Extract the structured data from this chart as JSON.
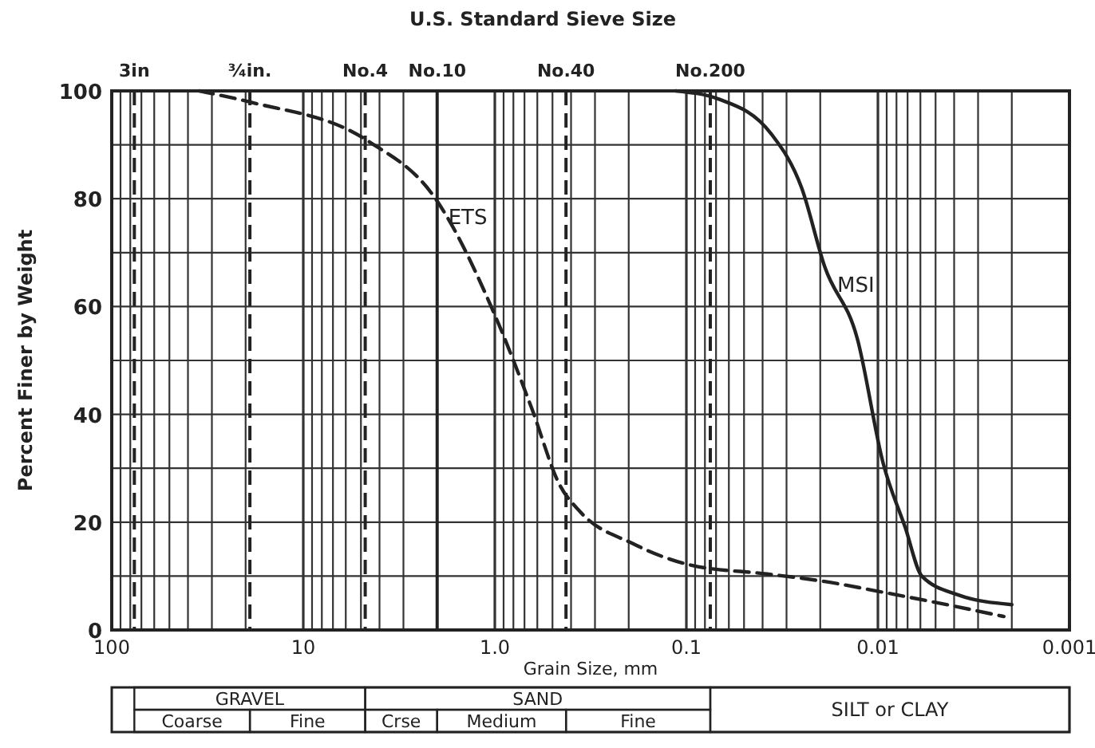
{
  "chart_data": [
    {
      "type": "line",
      "title": "U.S. Standard Sieve Size",
      "xlabel": "Grain Size, mm",
      "ylabel": "Percent Finer by Weight",
      "log": "x",
      "xlim": [
        100,
        0.001
      ],
      "ylim": [
        0,
        100
      ],
      "xticks": [
        {
          "value": 100,
          "label": "100"
        },
        {
          "value": 90,
          "label": null
        },
        {
          "value": 80,
          "label": null
        },
        {
          "value": 70,
          "label": null
        },
        {
          "value": 60,
          "label": null
        },
        {
          "value": 50,
          "label": null
        },
        {
          "value": 40,
          "label": null
        },
        {
          "value": 30,
          "label": null
        },
        {
          "value": 20,
          "label": null
        },
        {
          "value": 10,
          "label": "10"
        },
        {
          "value": 9,
          "label": null
        },
        {
          "value": 8,
          "label": null
        },
        {
          "value": 7,
          "label": null
        },
        {
          "value": 6,
          "label": null
        },
        {
          "value": 5,
          "label": null
        },
        {
          "value": 4,
          "label": null
        },
        {
          "value": 3,
          "label": null
        },
        {
          "value": 2,
          "label": null
        },
        {
          "value": 1,
          "label": "1.0"
        },
        {
          "value": 0.9,
          "label": null
        },
        {
          "value": 0.8,
          "label": null
        },
        {
          "value": 0.7,
          "label": null
        },
        {
          "value": 0.6,
          "label": null
        },
        {
          "value": 0.5,
          "label": null
        },
        {
          "value": 0.4,
          "label": null
        },
        {
          "value": 0.3,
          "label": null
        },
        {
          "value": 0.2,
          "label": null
        },
        {
          "value": 0.1,
          "label": "0.1"
        },
        {
          "value": 0.09,
          "label": null
        },
        {
          "value": 0.08,
          "label": null
        },
        {
          "value": 0.07,
          "label": null
        },
        {
          "value": 0.06,
          "label": null
        },
        {
          "value": 0.05,
          "label": null
        },
        {
          "value": 0.04,
          "label": null
        },
        {
          "value": 0.03,
          "label": null
        },
        {
          "value": 0.02,
          "label": null
        },
        {
          "value": 0.01,
          "label": "0.01"
        },
        {
          "value": 0.009,
          "label": null
        },
        {
          "value": 0.008,
          "label": null
        },
        {
          "value": 0.007,
          "label": null
        },
        {
          "value": 0.006,
          "label": null
        },
        {
          "value": 0.005,
          "label": null
        },
        {
          "value": 0.004,
          "label": null
        },
        {
          "value": 0.003,
          "label": null
        },
        {
          "value": 0.002,
          "label": null
        },
        {
          "value": 0.001,
          "label": "0.001"
        }
      ],
      "yticks": [
        0,
        {
          "value": 10,
          "label": null
        },
        20,
        {
          "value": 30,
          "label": null
        },
        40,
        {
          "value": 50,
          "label": null
        },
        60,
        {
          "value": 70,
          "label": null
        },
        80,
        {
          "value": 90,
          "label": null
        },
        100
      ],
      "grid": true,
      "marker": "none",
      "series": [
        {
          "name": "ETS",
          "color": "#222222",
          "line_style": "dashed",
          "x": [
            35,
            18.8,
            4.64,
            2.04,
            0.98,
            0.64,
            0.46,
            0.36,
            0.19,
            0.094,
            0.038,
            0.019,
            0.0094,
            0.0041,
            0.0022
          ],
          "values": [
            100,
            97.9,
            90.8,
            80,
            57.7,
            41,
            27,
            22,
            16,
            12,
            10.4,
            9,
            7,
            4.5,
            2.5
          ]
        },
        {
          "name": "MSI",
          "color": "#222222",
          "line_style": "solid",
          "x": [
            0.114,
            0.068,
            0.036,
            0.025,
            0.019,
            0.0128,
            0.0094,
            0.0072,
            0.0059,
            0.0038,
            0.002
          ],
          "values": [
            100,
            98.5,
            92,
            82,
            67.5,
            54,
            31,
            19,
            10,
            6.5,
            4.7
          ]
        }
      ],
      "ref_lines": [
        {
          "axis": "x",
          "value": 76.2,
          "label": "3in",
          "line_style": "dashed"
        },
        {
          "axis": "x",
          "value": 19,
          "label": "³⁄₄in.",
          "line_style": "dashed"
        },
        {
          "axis": "x",
          "value": 4.75,
          "label": "No.4",
          "line_style": "dashed"
        },
        {
          "axis": "x",
          "value": 2,
          "label": "No.10",
          "line_style": "solid"
        },
        {
          "axis": "x",
          "value": 0.425,
          "label": "No.40",
          "line_style": "dashed"
        },
        {
          "axis": "x",
          "value": 0.075,
          "label": "No.200",
          "line_style": "dashed"
        }
      ]
    },
    {
      "type": "other",
      "annotations": [
        "GRAVEL",
        "SAND",
        "SILT or CLAY",
        "Coarse",
        "Fine",
        "Crse",
        "Medium",
        "Fine"
      ]
    }
  ]
}
